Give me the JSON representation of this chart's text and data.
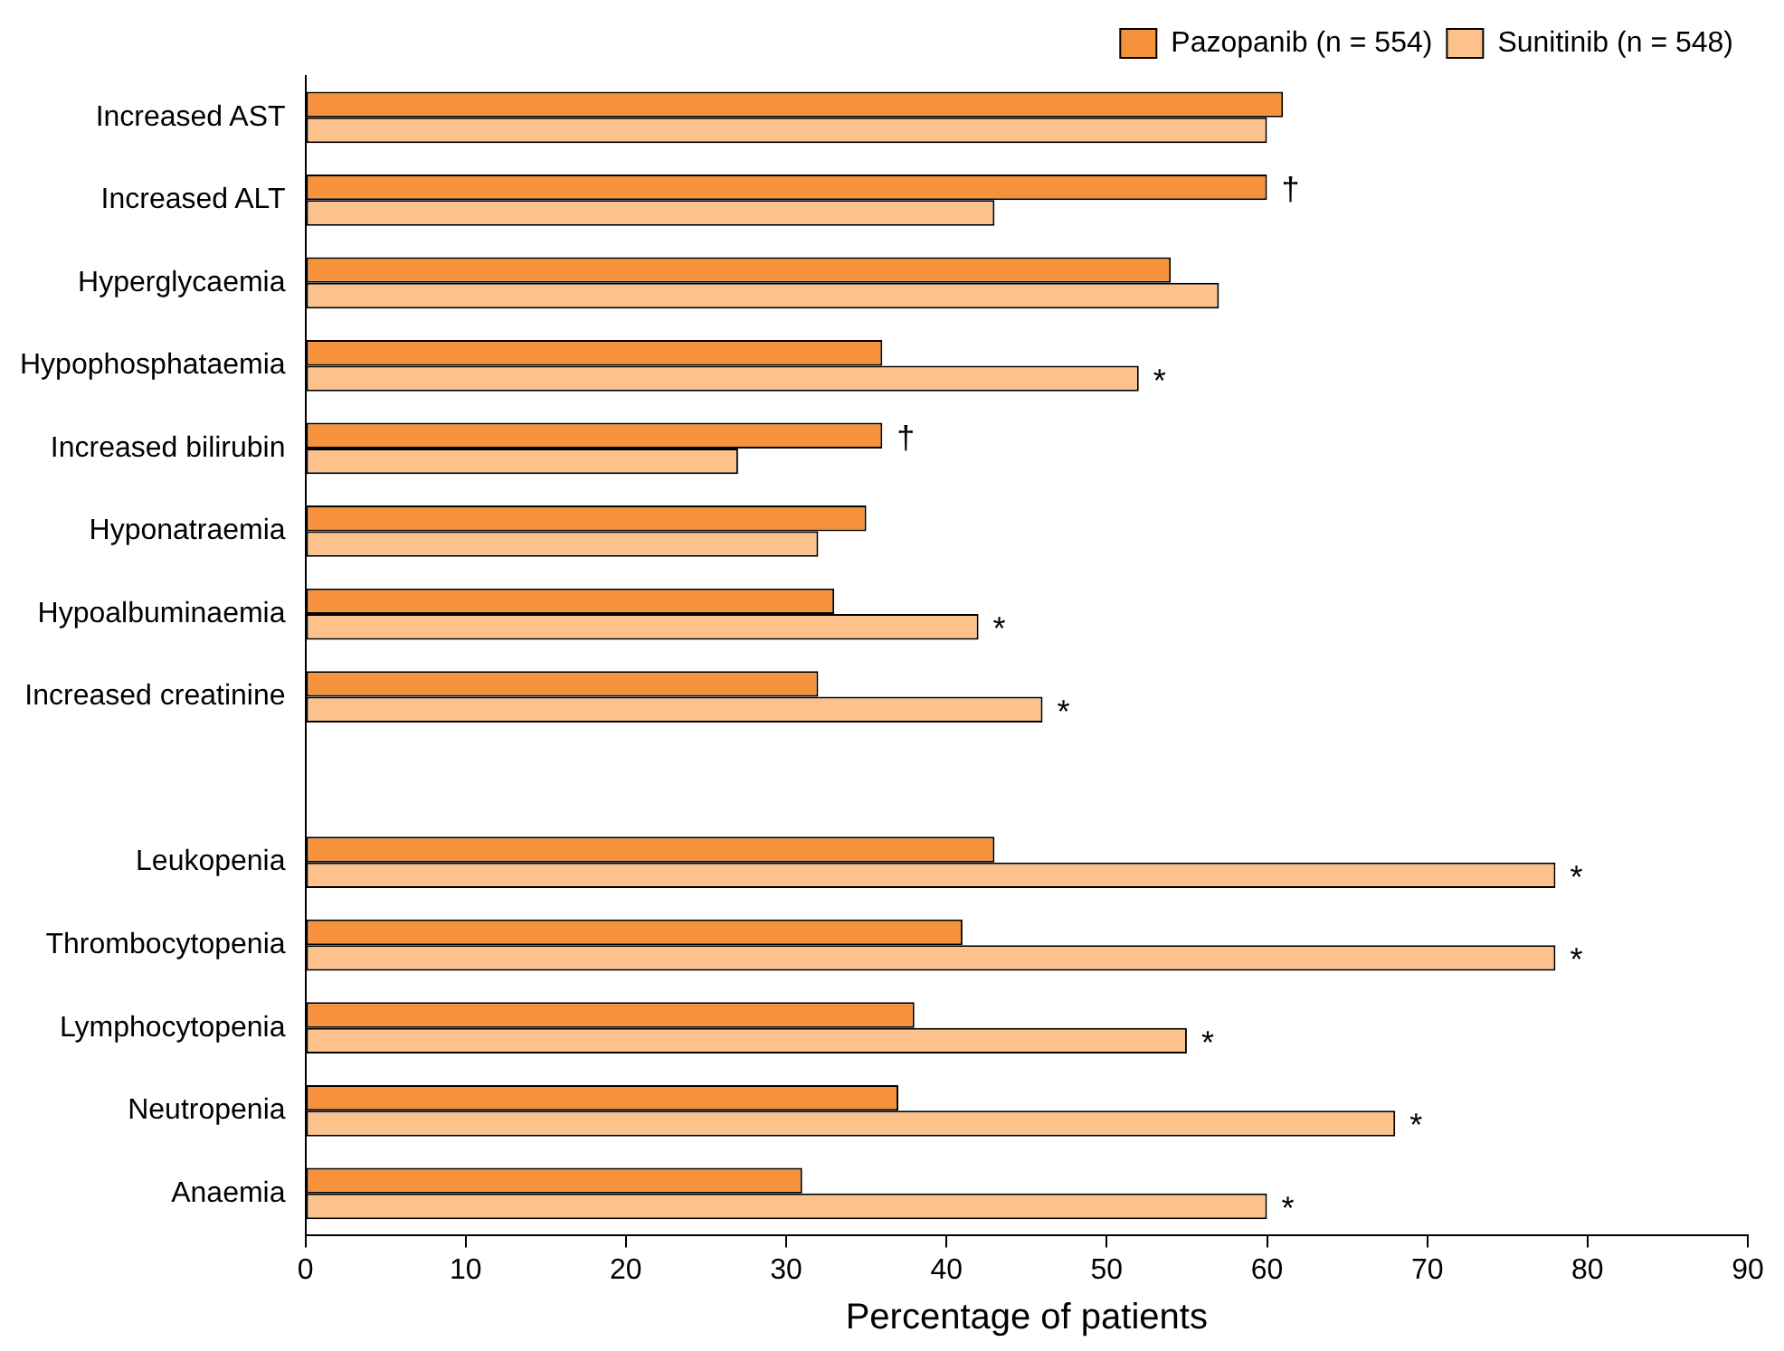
{
  "chart_data": {
    "type": "bar",
    "orientation": "horizontal",
    "xlabel": "Percentage of patients",
    "categories": [
      "Increased AST",
      "Increased ALT",
      "Hyperglycaemia",
      "Hypophosphataemia",
      "Increased bilirubin",
      "Hyponatraemia",
      "Hypoalbuminaemia",
      "Increased creatinine",
      null,
      "Leukopenia",
      "Thrombocytopenia",
      "Lymphocytopenia",
      "Neutropenia",
      "Anaemia"
    ],
    "series": [
      {
        "name": "Pazopanib (n = 554)",
        "color": "#f7923c",
        "values": [
          61,
          60,
          54,
          36,
          36,
          35,
          33,
          32,
          null,
          43,
          41,
          38,
          37,
          31
        ]
      },
      {
        "name": "Sunitinib (n = 548)",
        "color": "#fdc28b",
        "values": [
          60,
          43,
          57,
          52,
          27,
          32,
          42,
          46,
          null,
          78,
          78,
          55,
          68,
          60
        ]
      }
    ],
    "xlim": [
      0,
      90
    ],
    "xticks": [
      0,
      10,
      20,
      30,
      40,
      50,
      60,
      70,
      80,
      90
    ],
    "grid": false,
    "legend": "top right",
    "annotations": [
      {
        "text": "†",
        "x": 60,
        "y": "Increased ALT"
      },
      {
        "text": "*",
        "x": 52,
        "y": "Hypophosphataemia"
      },
      {
        "text": "†",
        "x": 36,
        "y": "Increased bilirubin"
      },
      {
        "text": "*",
        "x": 42,
        "y": "Hypoalbuminaemia"
      },
      {
        "text": "*",
        "x": 46,
        "y": "Increased creatinine"
      },
      {
        "text": "*",
        "x": 78,
        "y": "Leukopenia"
      },
      {
        "text": "*",
        "x": 78,
        "y": "Thrombocytopenia"
      },
      {
        "text": "*",
        "x": 55,
        "y": "Lymphocytopenia"
      },
      {
        "text": "*",
        "x": 68,
        "y": "Neutropenia"
      },
      {
        "text": "*",
        "x": 60,
        "y": "Anaemia"
      }
    ]
  }
}
